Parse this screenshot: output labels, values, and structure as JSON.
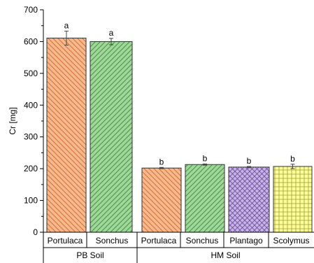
{
  "chart_data": {
    "type": "bar",
    "title": "",
    "ylabel": "Cr [mg]",
    "ylim": [
      0,
      700
    ],
    "yticks": [
      0,
      100,
      200,
      300,
      400,
      500,
      600,
      700
    ],
    "bars": [
      {
        "category": "Portulaca",
        "group": "PB Soil",
        "value": 611,
        "error": 22,
        "letter": "a",
        "fill": "#f8b98a",
        "pattern": "diag-back"
      },
      {
        "category": "Sonchus",
        "group": "PB Soil",
        "value": 600,
        "error": 10,
        "letter": "a",
        "fill": "#9fd69a",
        "pattern": "diag-fwd"
      },
      {
        "category": "Portulaca",
        "group": "HM Soil",
        "value": 202,
        "error": 2,
        "letter": "b",
        "fill": "#f8b98a",
        "pattern": "diag-back"
      },
      {
        "category": "Sonchus",
        "group": "HM Soil",
        "value": 213,
        "error": 2,
        "letter": "b",
        "fill": "#9fd69a",
        "pattern": "diag-fwd"
      },
      {
        "category": "Plantago",
        "group": "HM Soil",
        "value": 205,
        "error": 2,
        "letter": "b",
        "fill": "#c7b3e6",
        "pattern": "crosshatch"
      },
      {
        "category": "Scolymus",
        "group": "HM Soil",
        "value": 207,
        "error": 7,
        "letter": "b",
        "fill": "#ffff99",
        "pattern": "grid"
      }
    ],
    "groups": [
      "PB Soil",
      "HM Soil"
    ]
  }
}
